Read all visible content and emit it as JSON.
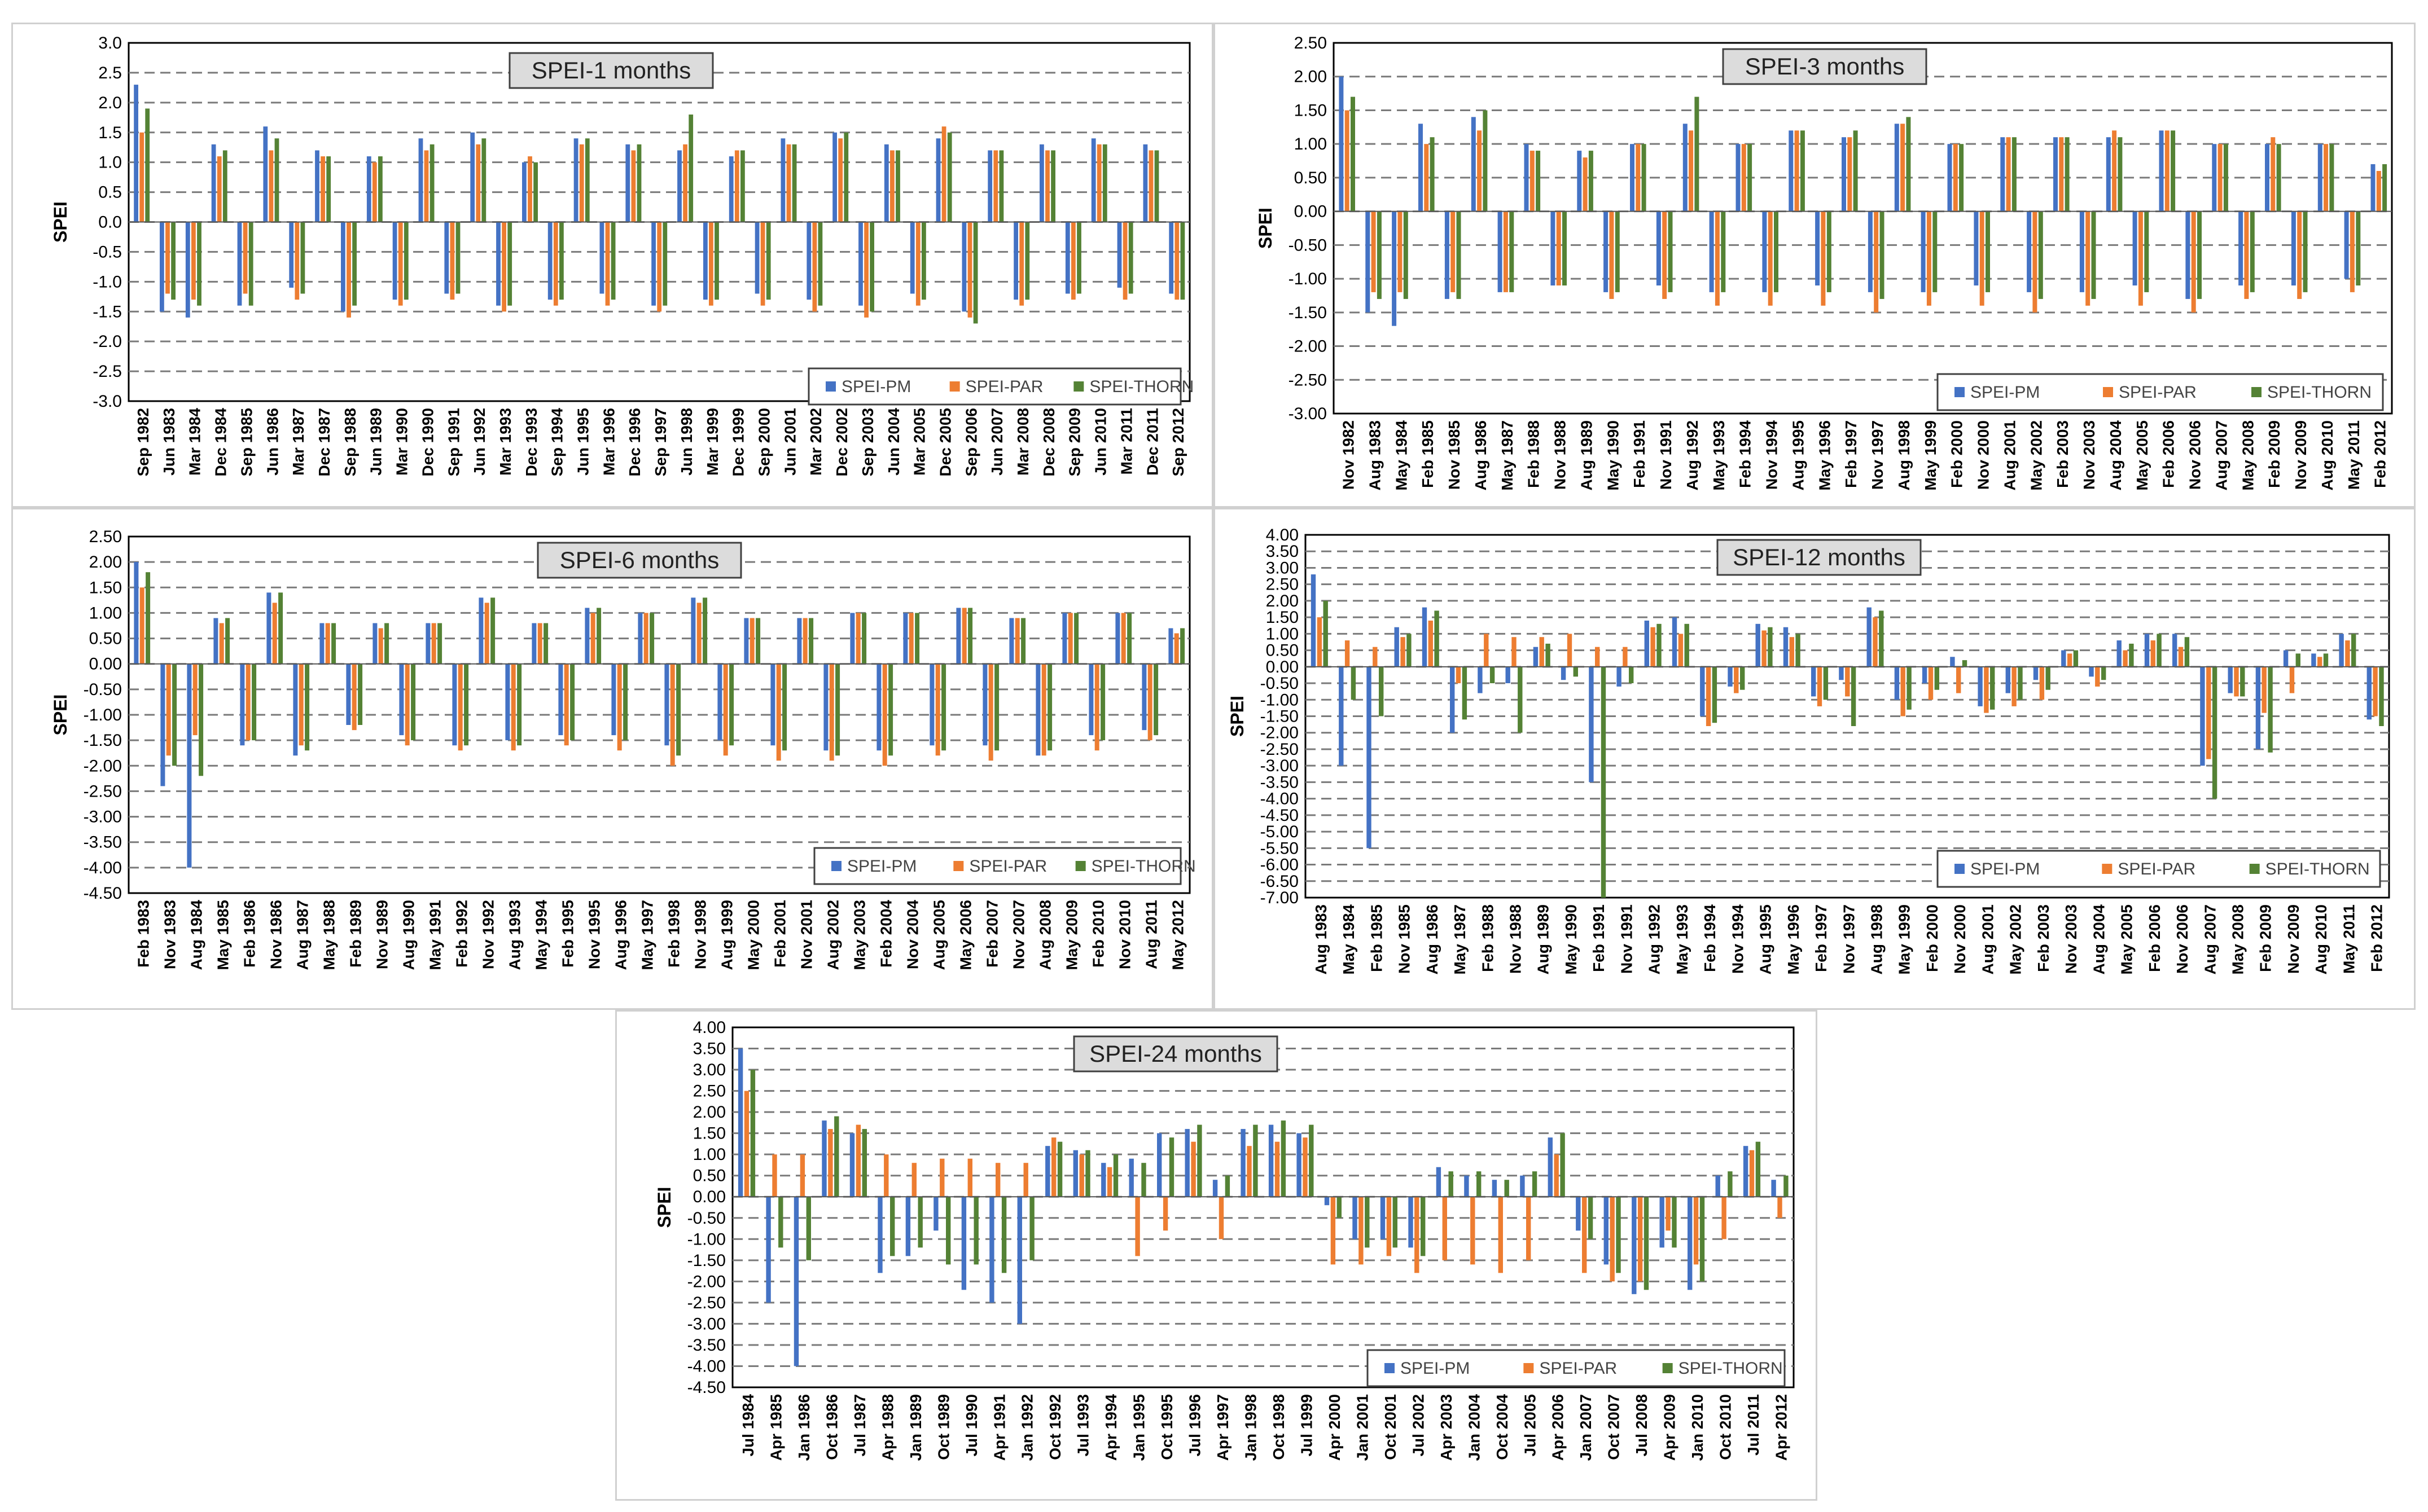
{
  "figure": {
    "colors": {
      "pm": "#4472C4",
      "par": "#ED7D31",
      "thorn": "#548235"
    }
  },
  "chart_data": [
    {
      "type": "bar",
      "title": "SPEI-1 months",
      "ylabel": "SPEI",
      "ylim": [
        -3.0,
        3.0
      ],
      "yticks": [
        "3.0",
        "2.5",
        "2.0",
        "1.5",
        "1.0",
        "0.5",
        "0.0",
        "-0.5",
        "-1.0",
        "-1.5",
        "-2.0",
        "-2.5",
        "-3.0"
      ],
      "categories": [
        "Sep 1982",
        "Jun 1983",
        "Mar 1984",
        "Dec 1984",
        "Sep 1985",
        "Jun 1986",
        "Mar 1987",
        "Dec 1987",
        "Sep 1988",
        "Jun 1989",
        "Mar 1990",
        "Dec 1990",
        "Sep 1991",
        "Jun 1992",
        "Mar 1993",
        "Dec 1993",
        "Sep 1994",
        "Jun 1995",
        "Mar 1996",
        "Dec 1996",
        "Sep 1997",
        "Jun 1998",
        "Mar 1999",
        "Dec 1999",
        "Sep 2000",
        "Jun 2001",
        "Mar 2002",
        "Dec 2002",
        "Sep 2003",
        "Jun 2004",
        "Mar 2005",
        "Dec 2005",
        "Sep 2006",
        "Jun 2007",
        "Mar 2008",
        "Dec 2008",
        "Sep 2009",
        "Jun 2010",
        "Mar 2011",
        "Dec 2011",
        "Sep 2012"
      ],
      "series": [
        {
          "name": "SPEI-PM",
          "values": [
            2.3,
            -1.5,
            -1.6,
            1.3,
            -1.4,
            1.6,
            -1.1,
            1.2,
            -1.5,
            1.1,
            -1.3,
            1.4,
            -1.2,
            1.5,
            -1.4,
            1.0,
            -1.3,
            1.4,
            -1.2,
            1.3,
            -1.4,
            1.2,
            -1.3,
            1.1,
            -1.2,
            1.4,
            -1.3,
            1.5,
            -1.4,
            1.3,
            -1.2,
            1.4,
            -1.5,
            1.2,
            -1.3,
            1.3,
            -1.2,
            1.4,
            -1.1,
            1.3,
            -1.2
          ]
        },
        {
          "name": "SPEI-PAR",
          "values": [
            1.5,
            -1.2,
            -1.3,
            1.1,
            -1.2,
            1.2,
            -1.3,
            1.1,
            -1.6,
            1.0,
            -1.4,
            1.2,
            -1.3,
            1.3,
            -1.5,
            1.1,
            -1.4,
            1.3,
            -1.4,
            1.2,
            -1.5,
            1.3,
            -1.4,
            1.2,
            -1.4,
            1.3,
            -1.5,
            1.4,
            -1.6,
            1.2,
            -1.4,
            1.6,
            -1.6,
            1.2,
            -1.4,
            1.2,
            -1.3,
            1.3,
            -1.3,
            1.2,
            -1.3
          ]
        },
        {
          "name": "SPEI-THORN",
          "values": [
            1.9,
            -1.3,
            -1.4,
            1.2,
            -1.4,
            1.4,
            -1.2,
            1.1,
            -1.4,
            1.1,
            -1.3,
            1.3,
            -1.2,
            1.4,
            -1.4,
            1.0,
            -1.3,
            1.4,
            -1.3,
            1.3,
            -1.4,
            1.8,
            -1.3,
            1.2,
            -1.3,
            1.3,
            -1.4,
            1.5,
            -1.5,
            1.2,
            -1.3,
            1.5,
            -1.7,
            1.2,
            -1.3,
            1.2,
            -1.2,
            1.3,
            -1.2,
            1.2,
            -1.3
          ]
        }
      ]
    },
    {
      "type": "bar",
      "title": "SPEI-3 months",
      "ylabel": "SPEI",
      "ylim": [
        -3.0,
        2.5
      ],
      "yticks": [
        "2.50",
        "2.00",
        "1.50",
        "1.00",
        "0.50",
        "0.00",
        "-0.50",
        "-1.00",
        "-1.50",
        "-2.00",
        "-2.50",
        "-3.00"
      ],
      "categories": [
        "Nov 1982",
        "Aug 1983",
        "May 1984",
        "Feb 1985",
        "Nov 1985",
        "Aug 1986",
        "May 1987",
        "Feb 1988",
        "Nov 1988",
        "Aug 1989",
        "May 1990",
        "Feb 1991",
        "Nov 1991",
        "Aug 1992",
        "May 1993",
        "Feb 1994",
        "Nov 1994",
        "Aug 1995",
        "May 1996",
        "Feb 1997",
        "Nov 1997",
        "Aug 1998",
        "May 1999",
        "Feb 2000",
        "Nov 2000",
        "Aug 2001",
        "May 2002",
        "Feb 2003",
        "Nov 2003",
        "Aug 2004",
        "May 2005",
        "Feb 2006",
        "Nov 2006",
        "Aug 2007",
        "May 2008",
        "Feb 2009",
        "Nov 2009",
        "Aug 2010",
        "May 2011",
        "Feb 2012"
      ],
      "series": [
        {
          "name": "SPEI-PM",
          "values": [
            2.0,
            -1.5,
            -1.7,
            1.3,
            -1.3,
            1.4,
            -1.2,
            1.0,
            -1.1,
            0.9,
            -1.2,
            1.0,
            -1.1,
            1.3,
            -1.2,
            1.0,
            -1.2,
            1.2,
            -1.1,
            1.1,
            -1.2,
            1.3,
            -1.2,
            1.0,
            -1.1,
            1.1,
            -1.2,
            1.1,
            -1.2,
            1.1,
            -1.1,
            1.2,
            -1.3,
            1.0,
            -1.1,
            1.0,
            -1.1,
            1.0,
            -1.0,
            0.7
          ]
        },
        {
          "name": "SPEI-PAR",
          "values": [
            1.5,
            -1.2,
            -1.2,
            1.0,
            -1.2,
            1.2,
            -1.2,
            0.9,
            -1.1,
            0.8,
            -1.3,
            1.0,
            -1.3,
            1.2,
            -1.4,
            1.0,
            -1.4,
            1.2,
            -1.4,
            1.1,
            -1.5,
            1.3,
            -1.4,
            1.0,
            -1.4,
            1.1,
            -1.5,
            1.1,
            -1.4,
            1.2,
            -1.4,
            1.2,
            -1.5,
            1.0,
            -1.3,
            1.1,
            -1.3,
            1.0,
            -1.2,
            0.6
          ]
        },
        {
          "name": "SPEI-THORN",
          "values": [
            1.7,
            -1.3,
            -1.3,
            1.1,
            -1.3,
            1.5,
            -1.2,
            0.9,
            -1.1,
            0.9,
            -1.2,
            1.0,
            -1.2,
            1.7,
            -1.2,
            1.0,
            -1.2,
            1.2,
            -1.2,
            1.2,
            -1.3,
            1.4,
            -1.2,
            1.0,
            -1.2,
            1.1,
            -1.3,
            1.1,
            -1.3,
            1.1,
            -1.2,
            1.2,
            -1.3,
            1.0,
            -1.2,
            1.0,
            -1.2,
            1.0,
            -1.1,
            0.7
          ]
        }
      ]
    },
    {
      "type": "bar",
      "title": "SPEI-6 months",
      "ylabel": "SPEI",
      "ylim": [
        -4.5,
        2.5
      ],
      "yticks": [
        "2.50",
        "2.00",
        "1.50",
        "1.00",
        "0.50",
        "0.00",
        "-0.50",
        "-1.00",
        "-1.50",
        "-2.00",
        "-2.50",
        "-3.00",
        "-3.50",
        "-4.00",
        "-4.50"
      ],
      "categories": [
        "Feb 1983",
        "Nov 1983",
        "Aug 1984",
        "May 1985",
        "Feb 1986",
        "Nov 1986",
        "Aug 1987",
        "May 1988",
        "Feb 1989",
        "Nov 1989",
        "Aug 1990",
        "May 1991",
        "Feb 1992",
        "Nov 1992",
        "Aug 1993",
        "May 1994",
        "Feb 1995",
        "Nov 1995",
        "Aug 1996",
        "May 1997",
        "Feb 1998",
        "Nov 1998",
        "Aug 1999",
        "May 2000",
        "Feb 2001",
        "Nov 2001",
        "Aug 2002",
        "May 2003",
        "Feb 2004",
        "Nov 2004",
        "Aug 2005",
        "May 2006",
        "Feb 2007",
        "Nov 2007",
        "Aug 2008",
        "May 2009",
        "Feb 2010",
        "Nov 2010",
        "Aug 2011",
        "May 2012"
      ],
      "series": [
        {
          "name": "SPEI-PM",
          "values": [
            2.0,
            -2.4,
            -4.0,
            0.9,
            -1.6,
            1.4,
            -1.8,
            0.8,
            -1.2,
            0.8,
            -1.4,
            0.8,
            -1.6,
            1.3,
            -1.5,
            0.8,
            -1.4,
            1.1,
            -1.4,
            1.0,
            -1.6,
            1.3,
            -1.5,
            0.9,
            -1.6,
            0.9,
            -1.7,
            1.0,
            -1.7,
            1.0,
            -1.6,
            1.1,
            -1.6,
            0.9,
            -1.8,
            1.0,
            -1.4,
            1.0,
            -1.3,
            0.7
          ]
        },
        {
          "name": "SPEI-PAR",
          "values": [
            1.5,
            -1.8,
            -1.4,
            0.8,
            -1.5,
            1.2,
            -1.6,
            0.8,
            -1.3,
            0.7,
            -1.6,
            0.8,
            -1.7,
            1.2,
            -1.7,
            0.8,
            -1.6,
            1.0,
            -1.7,
            1.0,
            -2.0,
            1.2,
            -1.8,
            0.9,
            -1.9,
            0.9,
            -1.9,
            1.0,
            -2.0,
            1.0,
            -1.8,
            1.1,
            -1.9,
            0.9,
            -1.8,
            1.0,
            -1.7,
            1.0,
            -1.5,
            0.6
          ]
        },
        {
          "name": "SPEI-THORN",
          "values": [
            1.8,
            -2.0,
            -2.2,
            0.9,
            -1.5,
            1.4,
            -1.7,
            0.8,
            -1.2,
            0.8,
            -1.5,
            0.8,
            -1.6,
            1.3,
            -1.6,
            0.8,
            -1.5,
            1.1,
            -1.5,
            1.0,
            -1.8,
            1.3,
            -1.6,
            0.9,
            -1.7,
            0.9,
            -1.8,
            1.0,
            -1.8,
            1.0,
            -1.7,
            1.1,
            -1.7,
            0.9,
            -1.7,
            1.0,
            -1.5,
            1.0,
            -1.4,
            0.7
          ]
        }
      ]
    },
    {
      "type": "bar",
      "title": "SPEI-12 months",
      "ylabel": "SPEI",
      "ylim": [
        -7.0,
        4.0
      ],
      "yticks": [
        "4.00",
        "3.50",
        "3.00",
        "2.50",
        "2.00",
        "1.50",
        "1.00",
        "0.50",
        "0.00",
        "-0.50",
        "-1.00",
        "-1.50",
        "-2.00",
        "-2.50",
        "-3.00",
        "-3.50",
        "-4.00",
        "-4.50",
        "-5.00",
        "-5.50",
        "-6.00",
        "-6.50",
        "-7.00"
      ],
      "categories": [
        "Aug 1983",
        "May 1984",
        "Feb 1985",
        "Nov 1985",
        "Aug 1986",
        "May 1987",
        "Feb 1988",
        "Nov 1988",
        "Aug 1989",
        "May 1990",
        "Feb 1991",
        "Nov 1991",
        "Aug 1992",
        "May 1993",
        "Feb 1994",
        "Nov 1994",
        "Aug 1995",
        "May 1996",
        "Feb 1997",
        "Nov 1997",
        "Aug 1998",
        "May 1999",
        "Feb 2000",
        "Nov 2000",
        "Aug 2001",
        "May 2002",
        "Feb 2003",
        "Nov 2003",
        "Aug 2004",
        "May 2005",
        "Feb 2006",
        "Nov 2006",
        "Aug 2007",
        "May 2008",
        "Feb 2009",
        "Nov 2009",
        "Aug 2010",
        "May 2011",
        "Feb 2012"
      ],
      "series": [
        {
          "name": "SPEI-PM",
          "values": [
            2.8,
            -3.0,
            -5.5,
            1.2,
            1.8,
            -2.0,
            -0.8,
            -0.5,
            0.6,
            -0.4,
            -3.5,
            -0.6,
            1.4,
            1.5,
            -1.5,
            -0.6,
            1.3,
            1.2,
            -0.9,
            -0.4,
            1.8,
            -1.0,
            -0.5,
            0.3,
            -1.2,
            -0.8,
            -0.4,
            0.5,
            -0.3,
            0.8,
            1.0,
            1.0,
            -3.0,
            -0.8,
            -2.5,
            0.5,
            0.4,
            1.0,
            -1.6
          ]
        },
        {
          "name": "SPEI-PAR",
          "values": [
            1.5,
            0.8,
            0.6,
            0.9,
            1.4,
            -0.5,
            1.0,
            0.9,
            0.9,
            1.0,
            0.6,
            0.6,
            1.2,
            1.0,
            -1.8,
            -0.8,
            1.1,
            0.9,
            -1.2,
            -0.9,
            1.5,
            -1.5,
            -1.0,
            -0.8,
            -1.4,
            -1.2,
            -1.0,
            0.4,
            -0.6,
            0.5,
            0.8,
            0.6,
            -2.8,
            -0.9,
            -1.4,
            -0.8,
            0.3,
            0.8,
            -1.5
          ]
        },
        {
          "name": "SPEI-THORN",
          "values": [
            2.0,
            -1.0,
            -1.5,
            1.0,
            1.7,
            -1.6,
            -0.5,
            -2.0,
            0.7,
            -0.3,
            -7.0,
            -0.5,
            1.3,
            1.3,
            -1.7,
            -0.7,
            1.2,
            1.0,
            -1.0,
            -1.8,
            1.7,
            -1.3,
            -0.7,
            0.2,
            -1.3,
            -1.0,
            -0.7,
            0.5,
            -0.4,
            0.7,
            1.0,
            0.9,
            -4.0,
            -0.9,
            -2.6,
            0.4,
            0.4,
            1.0,
            -1.8
          ]
        }
      ]
    },
    {
      "type": "bar",
      "title": "SPEI-24 months",
      "ylabel": "SPEI",
      "ylim": [
        -4.5,
        4.0
      ],
      "yticks": [
        "4.00",
        "3.50",
        "3.00",
        "2.50",
        "2.00",
        "1.50",
        "1.00",
        "0.50",
        "0.00",
        "-0.50",
        "-1.00",
        "-1.50",
        "-2.00",
        "-2.50",
        "-3.00",
        "-3.50",
        "-4.00",
        "-4.50"
      ],
      "categories": [
        "Jul 1984",
        "Apr 1985",
        "Jan 1986",
        "Oct 1986",
        "Jul 1987",
        "Apr 1988",
        "Jan 1989",
        "Oct 1989",
        "Jul 1990",
        "Apr 1991",
        "Jan 1992",
        "Oct 1992",
        "Jul 1993",
        "Apr 1994",
        "Jan 1995",
        "Oct 1995",
        "Jul 1996",
        "Apr 1997",
        "Jan 1998",
        "Oct 1998",
        "Jul 1999",
        "Apr 2000",
        "Jan 2001",
        "Oct 2001",
        "Jul 2002",
        "Apr 2003",
        "Jan 2004",
        "Oct 2004",
        "Jul 2005",
        "Apr 2006",
        "Jan 2007",
        "Oct 2007",
        "Jul 2008",
        "Apr 2009",
        "Jan 2010",
        "Oct 2010",
        "Jul 2011",
        "Apr 2012"
      ],
      "series": [
        {
          "name": "SPEI-PM",
          "values": [
            3.5,
            -2.5,
            -4.0,
            1.8,
            1.5,
            -1.8,
            -1.4,
            -0.8,
            -2.2,
            -2.5,
            -3.0,
            1.2,
            1.1,
            0.8,
            0.9,
            1.5,
            1.6,
            0.4,
            1.6,
            1.7,
            1.5,
            -0.2,
            -1.0,
            -1.0,
            -1.2,
            0.7,
            0.5,
            0.4,
            0.5,
            1.4,
            -0.8,
            -1.6,
            -2.3,
            -1.2,
            -2.2,
            0.5,
            1.2,
            0.4
          ]
        },
        {
          "name": "SPEI-PAR",
          "values": [
            2.5,
            1.0,
            1.0,
            1.6,
            1.7,
            1.0,
            0.8,
            0.9,
            0.9,
            0.8,
            0.8,
            1.4,
            1.0,
            0.7,
            -1.4,
            -0.8,
            1.3,
            -1.0,
            1.2,
            1.3,
            1.4,
            -1.6,
            -1.6,
            -1.4,
            -1.8,
            -1.5,
            -1.6,
            -1.8,
            -1.5,
            1.0,
            -1.8,
            -2.0,
            -2.0,
            -0.8,
            -1.6,
            -1.0,
            1.1,
            -0.5
          ]
        },
        {
          "name": "SPEI-THORN",
          "values": [
            3.0,
            -1.2,
            -1.5,
            1.9,
            1.6,
            -1.4,
            -1.2,
            -1.6,
            -1.6,
            -1.8,
            -1.5,
            1.3,
            1.1,
            1.0,
            0.8,
            1.4,
            1.7,
            0.5,
            1.7,
            1.8,
            1.7,
            -0.5,
            -1.2,
            -1.2,
            -1.4,
            0.6,
            0.6,
            0.4,
            0.6,
            1.5,
            -1.0,
            -1.8,
            -2.2,
            -1.2,
            -2.0,
            0.6,
            1.3,
            0.5
          ]
        }
      ]
    }
  ]
}
